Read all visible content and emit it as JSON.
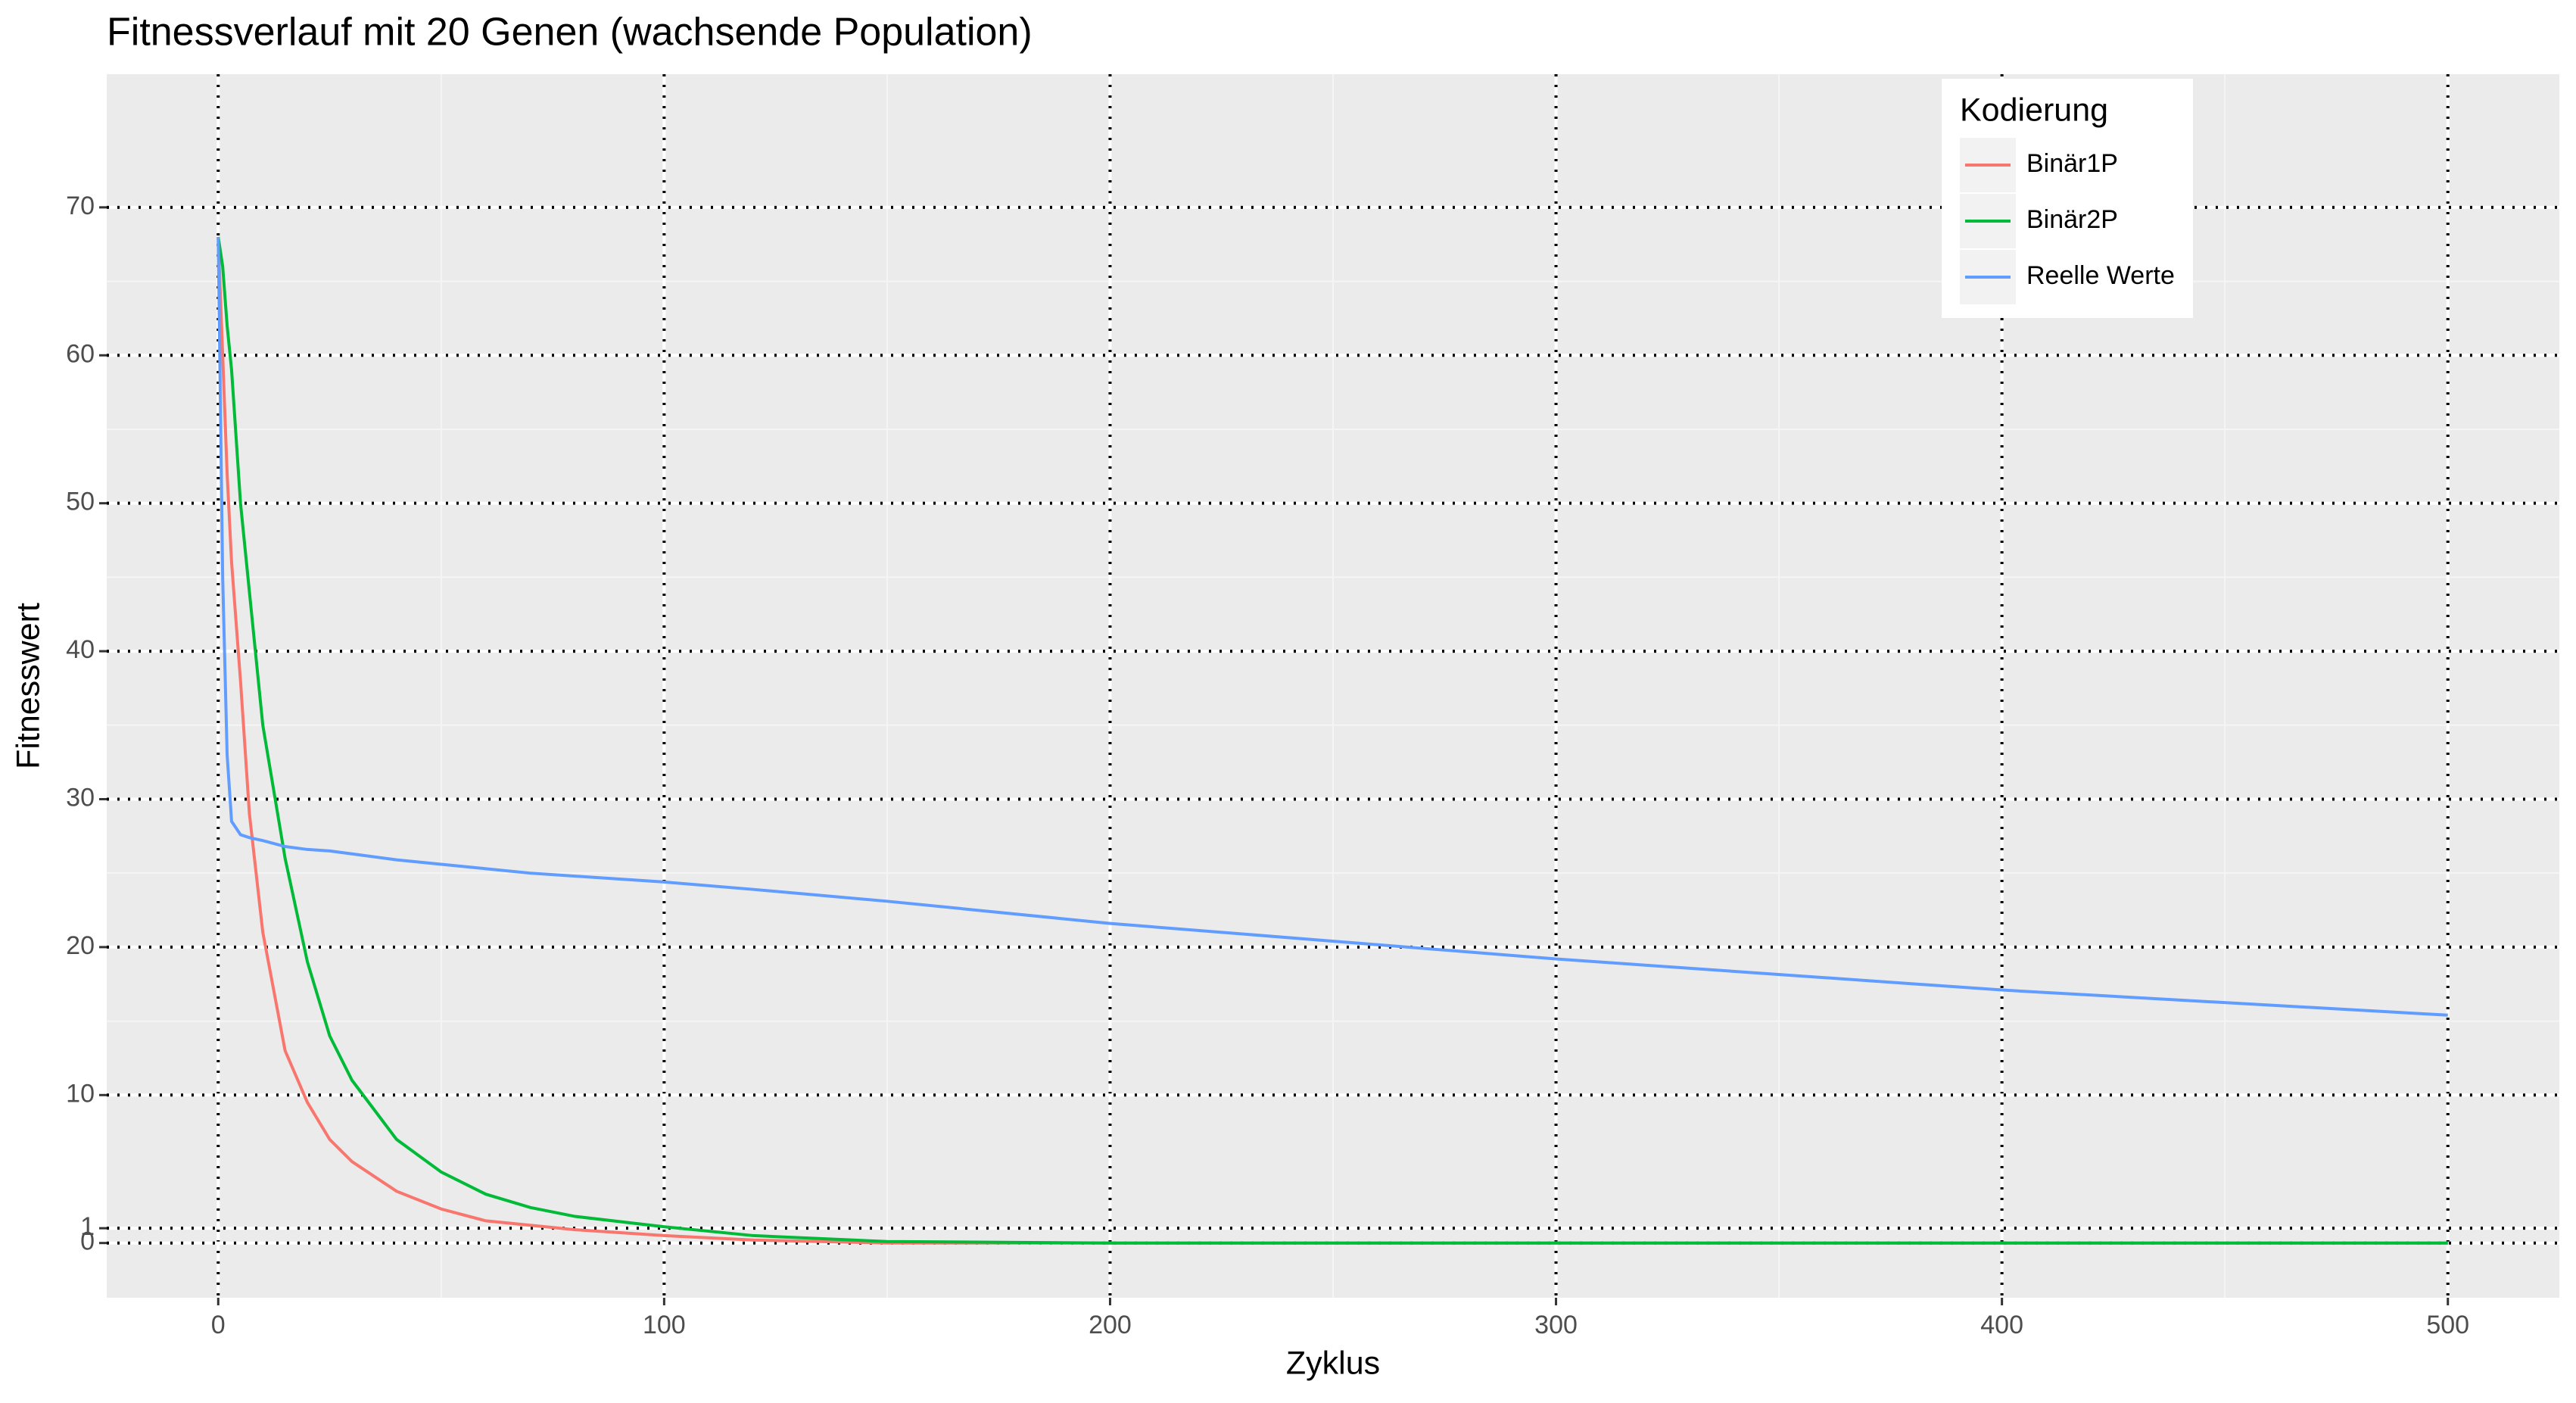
{
  "chart_data": {
    "type": "line",
    "title": "Fitnessverlauf mit 20 Genen (wachsende Population)",
    "x_label": "Zyklus",
    "y_label": "Fitnesswert",
    "legend_title": "Kodierung",
    "legend_position": "top-right",
    "x": [
      0,
      1,
      2,
      3,
      5,
      7,
      10,
      15,
      20,
      25,
      30,
      40,
      50,
      60,
      70,
      80,
      100,
      120,
      150,
      200,
      300,
      400,
      500
    ],
    "series": [
      {
        "name": "Binär1P",
        "color": "#f8766d",
        "values": [
          68,
          60,
          52,
          46,
          38,
          29,
          21,
          13,
          9.5,
          7,
          5.5,
          3.5,
          2.3,
          1.5,
          1.2,
          0.9,
          0.5,
          0.2,
          0,
          0,
          0,
          0,
          0
        ]
      },
      {
        "name": "Binär2P",
        "color": "#00ba38",
        "values": [
          68,
          66,
          62,
          59,
          50,
          44,
          35,
          26,
          19,
          14,
          11,
          7,
          4.8,
          3.3,
          2.4,
          1.8,
          1.1,
          0.5,
          0.1,
          0,
          0,
          0,
          0
        ]
      },
      {
        "name": "Reelle Werte",
        "color": "#619cff",
        "values": [
          68,
          45,
          33,
          28.5,
          27.6,
          27.4,
          27.2,
          26.8,
          26.6,
          26.5,
          26.3,
          25.9,
          25.6,
          25.3,
          25,
          24.8,
          24.4,
          23.9,
          23.1,
          21.6,
          19.2,
          17.1,
          15.4
        ]
      }
    ],
    "xlim": [
      -25,
      525
    ],
    "xticks": [
      0,
      100,
      200,
      300,
      400,
      500
    ],
    "ylim": [
      -3.7,
      79
    ],
    "yticks": [
      0,
      1,
      10,
      20,
      30,
      40,
      50,
      60,
      70
    ],
    "grid": true
  }
}
